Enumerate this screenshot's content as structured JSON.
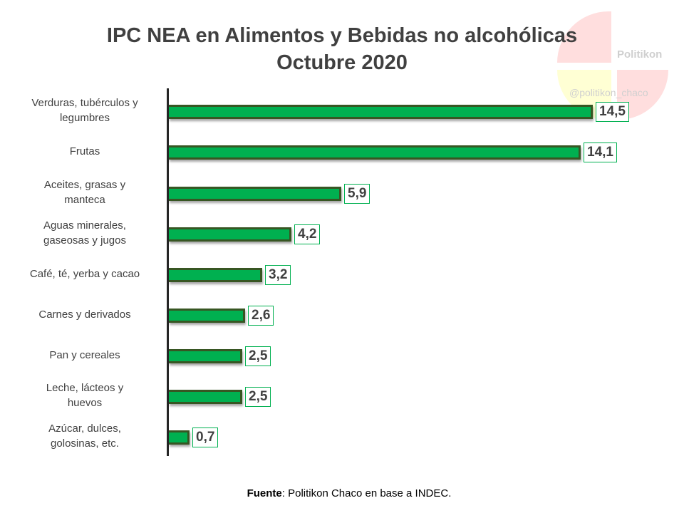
{
  "watermark": {
    "name": "Politikon",
    "handle": "@politikon_chaco"
  },
  "title": {
    "line1": "IPC NEA en Alimentos y Bebidas no alcohólicas",
    "line2": "Octubre 2020"
  },
  "bars": [
    {
      "label_lines": [
        "Verduras, tubérculos y",
        "legumbres"
      ],
      "value": 14.5,
      "value_label": "14,5"
    },
    {
      "label_lines": [
        "Frutas"
      ],
      "value": 14.1,
      "value_label": "14,1"
    },
    {
      "label_lines": [
        "Aceites, grasas y",
        "manteca"
      ],
      "value": 5.9,
      "value_label": "5,9"
    },
    {
      "label_lines": [
        "Aguas minerales,",
        "gaseosas y jugos"
      ],
      "value": 4.2,
      "value_label": "4,2"
    },
    {
      "label_lines": [
        "Café, té, yerba y cacao"
      ],
      "value": 3.2,
      "value_label": "3,2"
    },
    {
      "label_lines": [
        "Carnes y derivados"
      ],
      "value": 2.6,
      "value_label": "2,6"
    },
    {
      "label_lines": [
        "Pan y cereales"
      ],
      "value": 2.5,
      "value_label": "2,5"
    },
    {
      "label_lines": [
        "Leche, lácteos y",
        "huevos"
      ],
      "value": 2.5,
      "value_label": "2,5"
    },
    {
      "label_lines": [
        "Azúcar, dulces,",
        "golosinas, etc."
      ],
      "value": 0.7,
      "value_label": "0,7"
    }
  ],
  "source": {
    "bold": "Fuente",
    "text": ": Politikon Chaco en base a INDEC."
  },
  "colors": {
    "bar_fill": "#00b050",
    "bar_border": "#375623",
    "label_box_border": "#00b050",
    "text": "#404040"
  },
  "chart_data": {
    "type": "bar",
    "orientation": "horizontal",
    "title": "IPC NEA en Alimentos y Bebidas no alcohólicas — Octubre 2020",
    "categories": [
      "Verduras, tubérculos y legumbres",
      "Frutas",
      "Aceites, grasas y manteca",
      "Aguas minerales, gaseosas y jugos",
      "Café, té, yerba y cacao",
      "Carnes y derivados",
      "Pan y cereales",
      "Leche, lácteos y huevos",
      "Azúcar, dulces, golosinas, etc."
    ],
    "values": [
      14.5,
      14.1,
      5.9,
      4.2,
      3.2,
      2.6,
      2.5,
      2.5,
      0.7
    ],
    "data_labels": [
      "14,5",
      "14,1",
      "5,9",
      "4,2",
      "3,2",
      "2,6",
      "2,5",
      "2,5",
      "0,7"
    ],
    "xlabel": "",
    "ylabel": "",
    "grid": false,
    "legend": null,
    "source": "Fuente: Politikon Chaco en base a INDEC."
  }
}
